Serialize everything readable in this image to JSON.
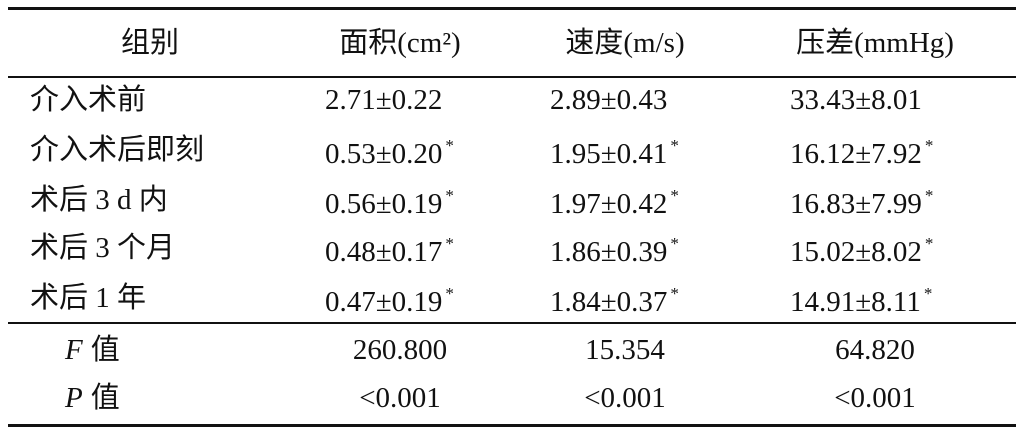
{
  "table": {
    "header": [
      "组别",
      "面积(cm²)",
      "速度(m/s)",
      "压差(mmHg)"
    ],
    "rows": [
      [
        {
          "text": "介入术前"
        },
        {
          "text": "2.71±0.22"
        },
        {
          "text": "2.89±0.43"
        },
        {
          "text": "33.43±8.01"
        }
      ],
      [
        {
          "text": "介入术后即刻"
        },
        {
          "text": "0.53±0.20",
          "mark": "*"
        },
        {
          "text": "1.95±0.41",
          "mark": "*"
        },
        {
          "text": "16.12±7.92",
          "mark": "*"
        }
      ],
      [
        {
          "text": "术后 3 d 内"
        },
        {
          "text": "0.56±0.19",
          "mark": "*"
        },
        {
          "text": "1.97±0.42",
          "mark": "*"
        },
        {
          "text": "16.83±7.99",
          "mark": "*"
        }
      ],
      [
        {
          "text": "术后 3 个月"
        },
        {
          "text": "0.48±0.17",
          "mark": "*"
        },
        {
          "text": "1.86±0.39",
          "mark": "*"
        },
        {
          "text": "15.02±8.02",
          "mark": "*"
        }
      ],
      [
        {
          "text": "术后 1 年"
        },
        {
          "text": "0.47±0.19",
          "mark": "*"
        },
        {
          "text": "1.84±0.37",
          "mark": "*"
        },
        {
          "text": "14.91±8.11",
          "mark": "*"
        }
      ]
    ],
    "stats": [
      {
        "symbol": "F",
        "label": "值",
        "values": [
          "260.800",
          "15.354",
          "64.820"
        ]
      },
      {
        "symbol": "P",
        "label": "值",
        "values": [
          "<0.001",
          "<0.001",
          "<0.001"
        ]
      }
    ]
  }
}
